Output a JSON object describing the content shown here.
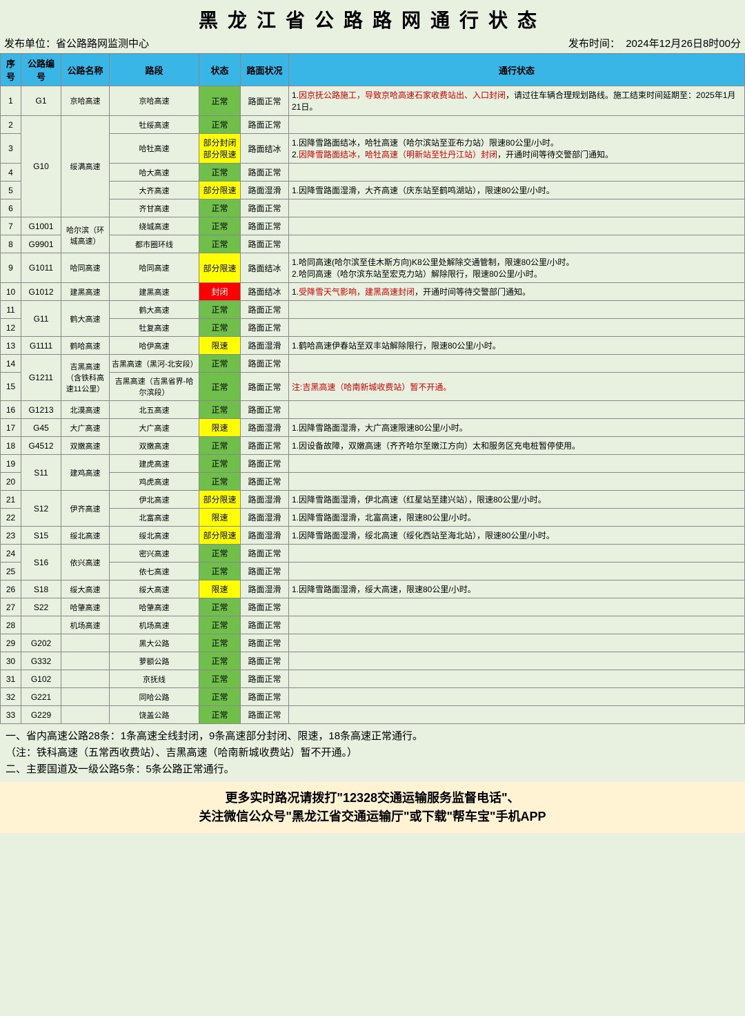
{
  "title": "黑龙江省公路路网通行状态",
  "publisher_label": "发布单位：",
  "publisher": "省公路路网监测中心",
  "time_label": "发布时间：",
  "time": "2024年12月26日8时00分",
  "headers": [
    "序号",
    "公路编号",
    "公路名称",
    "路段",
    "状态",
    "路面状况",
    "通行状态"
  ],
  "status_map": {
    "正常": "status-normal",
    "部分封闭部分限速": "status-limit",
    "部分限速": "status-limit",
    "限速": "status-limit",
    "封闭": "status-closed"
  },
  "rows": [
    {
      "n": "1",
      "code": "G1",
      "name": "京哈高速",
      "seg": "京哈高速",
      "st": "正常",
      "surf": "路面正常",
      "info": [
        {
          "t": "1.",
          "c": ""
        },
        {
          "t": "因京抚公路施工，导致京哈高速石家收费站出、入口封闭",
          "c": "red"
        },
        {
          "t": "，请过往车辆合理规划路线。施工结束时间延期至：2025年1月21日。",
          "c": ""
        }
      ],
      "code_rs": 1,
      "name_rs": 1
    },
    {
      "n": "2",
      "code": "G10",
      "name": "绥满高速",
      "seg": "牡绥高速",
      "st": "正常",
      "surf": "路面正常",
      "info": [],
      "code_rs": 5,
      "name_rs": 5
    },
    {
      "n": "3",
      "seg": "哈牡高速",
      "st": "部分封闭部分限速",
      "surf": "路面结冰",
      "info": [
        {
          "t": "1.因降雪路面结冰，哈牡高速（哈尔滨站至亚布力站）限速80公里/小时。",
          "c": ""
        },
        {
          "br": true
        },
        {
          "t": "2.",
          "c": ""
        },
        {
          "t": "因降雪路面结冰，哈牡高速（明新站至牡丹江站）封闭",
          "c": "red"
        },
        {
          "t": "，开通时间等待交警部门通知。",
          "c": ""
        }
      ]
    },
    {
      "n": "4",
      "seg": "哈大高速",
      "st": "正常",
      "surf": "路面正常",
      "info": []
    },
    {
      "n": "5",
      "seg": "大齐高速",
      "st": "部分限速",
      "surf": "路面湿滑",
      "info": [
        {
          "t": "1.因降雪路面湿滑，大齐高速（庆东站至鹤鸣湖站），限速80公里/小时。",
          "c": ""
        }
      ]
    },
    {
      "n": "6",
      "seg": "齐甘高速",
      "st": "正常",
      "surf": "路面正常",
      "info": []
    },
    {
      "n": "7",
      "code": "G1001",
      "name": "哈尔滨（环城高速）",
      "seg": "绕城高速",
      "st": "正常",
      "surf": "路面正常",
      "info": [],
      "code_rs": 1,
      "name_rs": 2
    },
    {
      "n": "8",
      "code": "G9901",
      "seg": "都市圈环线",
      "st": "正常",
      "surf": "路面正常",
      "info": [],
      "code_rs": 1
    },
    {
      "n": "9",
      "code": "G1011",
      "name": "哈同高速",
      "seg": "哈同高速",
      "st": "部分限速",
      "surf": "路面结冰",
      "info": [
        {
          "t": "1.哈同高速(哈尔滨至佳木斯方向)K8公里处解除交通管制，限速80公里/小时。",
          "c": ""
        },
        {
          "br": true
        },
        {
          "t": "2.哈同高速（哈尔滨东站至宏克力站）解除限行，限速80公里/小时。",
          "c": ""
        }
      ],
      "code_rs": 1,
      "name_rs": 1
    },
    {
      "n": "10",
      "code": "G1012",
      "name": "建黑高速",
      "seg": "建黑高速",
      "st": "封闭",
      "surf": "路面结冰",
      "info": [
        {
          "t": "1.",
          "c": ""
        },
        {
          "t": "受降雪天气影响，建黑高速封闭",
          "c": "red"
        },
        {
          "t": "，开通时间等待交警部门通知。",
          "c": ""
        }
      ],
      "code_rs": 1,
      "name_rs": 1
    },
    {
      "n": "11",
      "code": "G11",
      "name": "鹤大高速",
      "seg": "鹤大高速",
      "st": "正常",
      "surf": "路面正常",
      "info": [],
      "code_rs": 2,
      "name_rs": 2
    },
    {
      "n": "12",
      "seg": "牡复高速",
      "st": "正常",
      "surf": "路面正常",
      "info": []
    },
    {
      "n": "13",
      "code": "G1111",
      "name": "鹤哈高速",
      "seg": "哈伊高速",
      "st": "限速",
      "surf": "路面湿滑",
      "info": [
        {
          "t": "1.鹤哈高速伊春站至双丰站解除限行，限速80公里/小时。",
          "c": ""
        }
      ],
      "code_rs": 1,
      "name_rs": 1
    },
    {
      "n": "14",
      "code": "G1211",
      "name": "吉黑高速（含铁科高速11公里）",
      "seg": "吉黑高速（黑河-北安段）",
      "st": "正常",
      "surf": "路面正常",
      "info": [],
      "code_rs": 2,
      "name_rs": 2
    },
    {
      "n": "15",
      "seg": "吉黑高速（吉黑省界-哈尔滨段）",
      "st": "正常",
      "surf": "路面正常",
      "info": [
        {
          "t": "注:吉黑高速（哈南新城收费站）暂不开通。",
          "c": "red"
        }
      ]
    },
    {
      "n": "16",
      "code": "G1213",
      "name": "北漠高速",
      "seg": "北五高速",
      "st": "正常",
      "surf": "路面正常",
      "info": [],
      "code_rs": 1,
      "name_rs": 1
    },
    {
      "n": "17",
      "code": "G45",
      "name": "大广高速",
      "seg": "大广高速",
      "st": "限速",
      "surf": "路面湿滑",
      "info": [
        {
          "t": "1.因降雪路面湿滑，大广高速限速80公里/小时。",
          "c": ""
        }
      ],
      "code_rs": 1,
      "name_rs": 1
    },
    {
      "n": "18",
      "code": "G4512",
      "name": "双嫩高速",
      "seg": "双嫩高速",
      "st": "正常",
      "surf": "路面正常",
      "info": [
        {
          "t": "1.因设备故障，双嫩高速（齐齐哈尔至嫩江方向）太和服务区充电桩暂停使用。",
          "c": ""
        }
      ],
      "code_rs": 1,
      "name_rs": 1
    },
    {
      "n": "19",
      "code": "S11",
      "name": "建鸡高速",
      "seg": "建虎高速",
      "st": "正常",
      "surf": "路面正常",
      "info": [],
      "code_rs": 2,
      "name_rs": 2
    },
    {
      "n": "20",
      "seg": "鸡虎高速",
      "st": "正常",
      "surf": "路面正常",
      "info": []
    },
    {
      "n": "21",
      "code": "S12",
      "name": "伊齐高速",
      "seg": "伊北高速",
      "st": "部分限速",
      "surf": "路面湿滑",
      "info": [
        {
          "t": "1.因降雪路面湿滑，伊北高速（红星站至建兴站），限速80公里/小时。",
          "c": ""
        }
      ],
      "code_rs": 2,
      "name_rs": 2
    },
    {
      "n": "22",
      "seg": "北富高速",
      "st": "限速",
      "surf": "路面湿滑",
      "info": [
        {
          "t": "1.因降雪路面湿滑，北富高速，限速80公里/小时。",
          "c": ""
        }
      ]
    },
    {
      "n": "23",
      "code": "S15",
      "name": "绥北高速",
      "seg": "绥北高速",
      "st": "部分限速",
      "surf": "路面湿滑",
      "info": [
        {
          "t": "1.因降雪路面湿滑，绥北高速（绥化西站至海北站），限速80公里/小时。",
          "c": ""
        }
      ],
      "code_rs": 1,
      "name_rs": 1
    },
    {
      "n": "24",
      "code": "S16",
      "name": "依兴高速",
      "seg": "密兴高速",
      "st": "正常",
      "surf": "路面正常",
      "info": [],
      "code_rs": 2,
      "name_rs": 2
    },
    {
      "n": "25",
      "seg": "依七高速",
      "st": "正常",
      "surf": "路面正常",
      "info": []
    },
    {
      "n": "26",
      "code": "S18",
      "name": "绥大高速",
      "seg": "绥大高速",
      "st": "限速",
      "surf": "路面湿滑",
      "info": [
        {
          "t": "1.因降雪路面湿滑，绥大高速，限速80公里/小时。",
          "c": ""
        }
      ],
      "code_rs": 1,
      "name_rs": 1
    },
    {
      "n": "27",
      "code": "S22",
      "name": "哈肇高速",
      "seg": "哈肇高速",
      "st": "正常",
      "surf": "路面正常",
      "info": [],
      "code_rs": 1,
      "name_rs": 1
    },
    {
      "n": "28",
      "code": "",
      "name": "机场高速",
      "seg": "机场高速",
      "st": "正常",
      "surf": "路面正常",
      "info": [],
      "code_rs": 1,
      "name_rs": 1
    },
    {
      "n": "29",
      "code": "G202",
      "name": "",
      "seg": "黑大公路",
      "st": "正常",
      "surf": "路面正常",
      "info": [],
      "code_rs": 1,
      "name_rs": 1
    },
    {
      "n": "30",
      "code": "G332",
      "name": "",
      "seg": "萝额公路",
      "st": "正常",
      "surf": "路面正常",
      "info": [],
      "code_rs": 1,
      "name_rs": 1
    },
    {
      "n": "31",
      "code": "G102",
      "name": "",
      "seg": "京抚线",
      "st": "正常",
      "surf": "路面正常",
      "info": [],
      "code_rs": 1,
      "name_rs": 1
    },
    {
      "n": "32",
      "code": "G221",
      "name": "",
      "seg": "同哈公路",
      "st": "正常",
      "surf": "路面正常",
      "info": [],
      "code_rs": 1,
      "name_rs": 1
    },
    {
      "n": "33",
      "code": "G229",
      "name": "",
      "seg": "饶盖公路",
      "st": "正常",
      "surf": "路面正常",
      "info": [],
      "code_rs": 1,
      "name_rs": 1
    }
  ],
  "summary": [
    "一、省内高速公路28条：1条高速全线封闭，9条高速部分封闭、限速，18条高速正常通行。",
    "（注：铁科高速（五常西收费站）、吉黑高速（哈南新城收费站）暂不开通。）",
    "二、主要国道及一级公路5条：5条公路正常通行。"
  ],
  "footer": [
    "更多实时路况请拨打\"12328交通运输服务监督电话\"、",
    "关注微信公众号\"黑龙江省交通运输厅\"或下载\"帮车宝\"手机APP"
  ]
}
